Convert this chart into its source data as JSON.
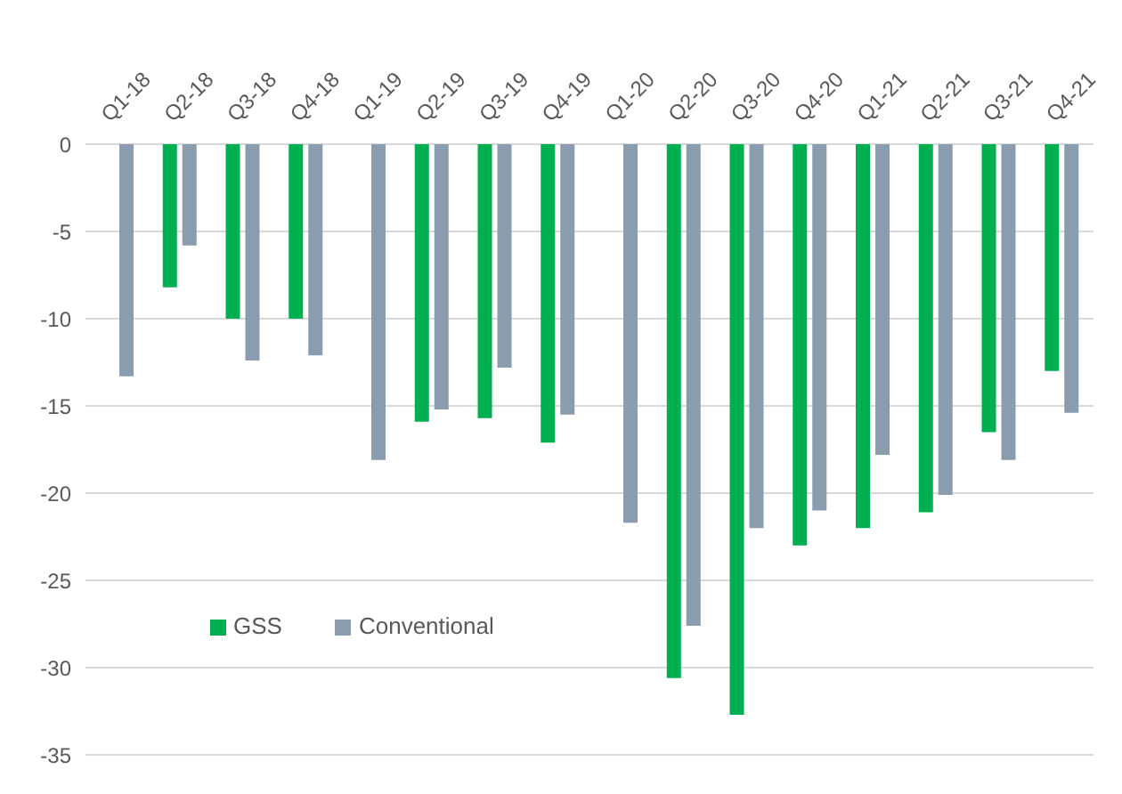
{
  "chart_data": {
    "type": "bar",
    "categories": [
      "Q1-18",
      "Q2-18",
      "Q3-18",
      "Q4-18",
      "Q1-19",
      "Q2-19",
      "Q3-19",
      "Q4-19",
      "Q1-20",
      "Q2-20",
      "Q3-20",
      "Q4-20",
      "Q1-21",
      "Q2-21",
      "Q3-21",
      "Q4-21"
    ],
    "series": [
      {
        "name": "GSS",
        "color": "#00b050",
        "values": [
          null,
          -8.2,
          -10,
          -10,
          null,
          -15.9,
          -15.7,
          -17.1,
          null,
          -30.6,
          -32.7,
          -23,
          -22,
          -21.1,
          -16.5,
          -13
        ]
      },
      {
        "name": "Conventional",
        "color": "#8a9daf",
        "values": [
          -13.3,
          -5.8,
          -12.4,
          -12.1,
          -18.1,
          -15.2,
          -12.8,
          -15.5,
          -21.7,
          -27.6,
          -22,
          -21,
          -17.8,
          -20.1,
          -18.1,
          -15.4
        ]
      }
    ],
    "ylim": [
      -35,
      0
    ],
    "yticks": [
      -35,
      -30,
      -25,
      -20,
      -15,
      -10,
      -5,
      0
    ],
    "grid": "y",
    "legend": "bottom left"
  }
}
